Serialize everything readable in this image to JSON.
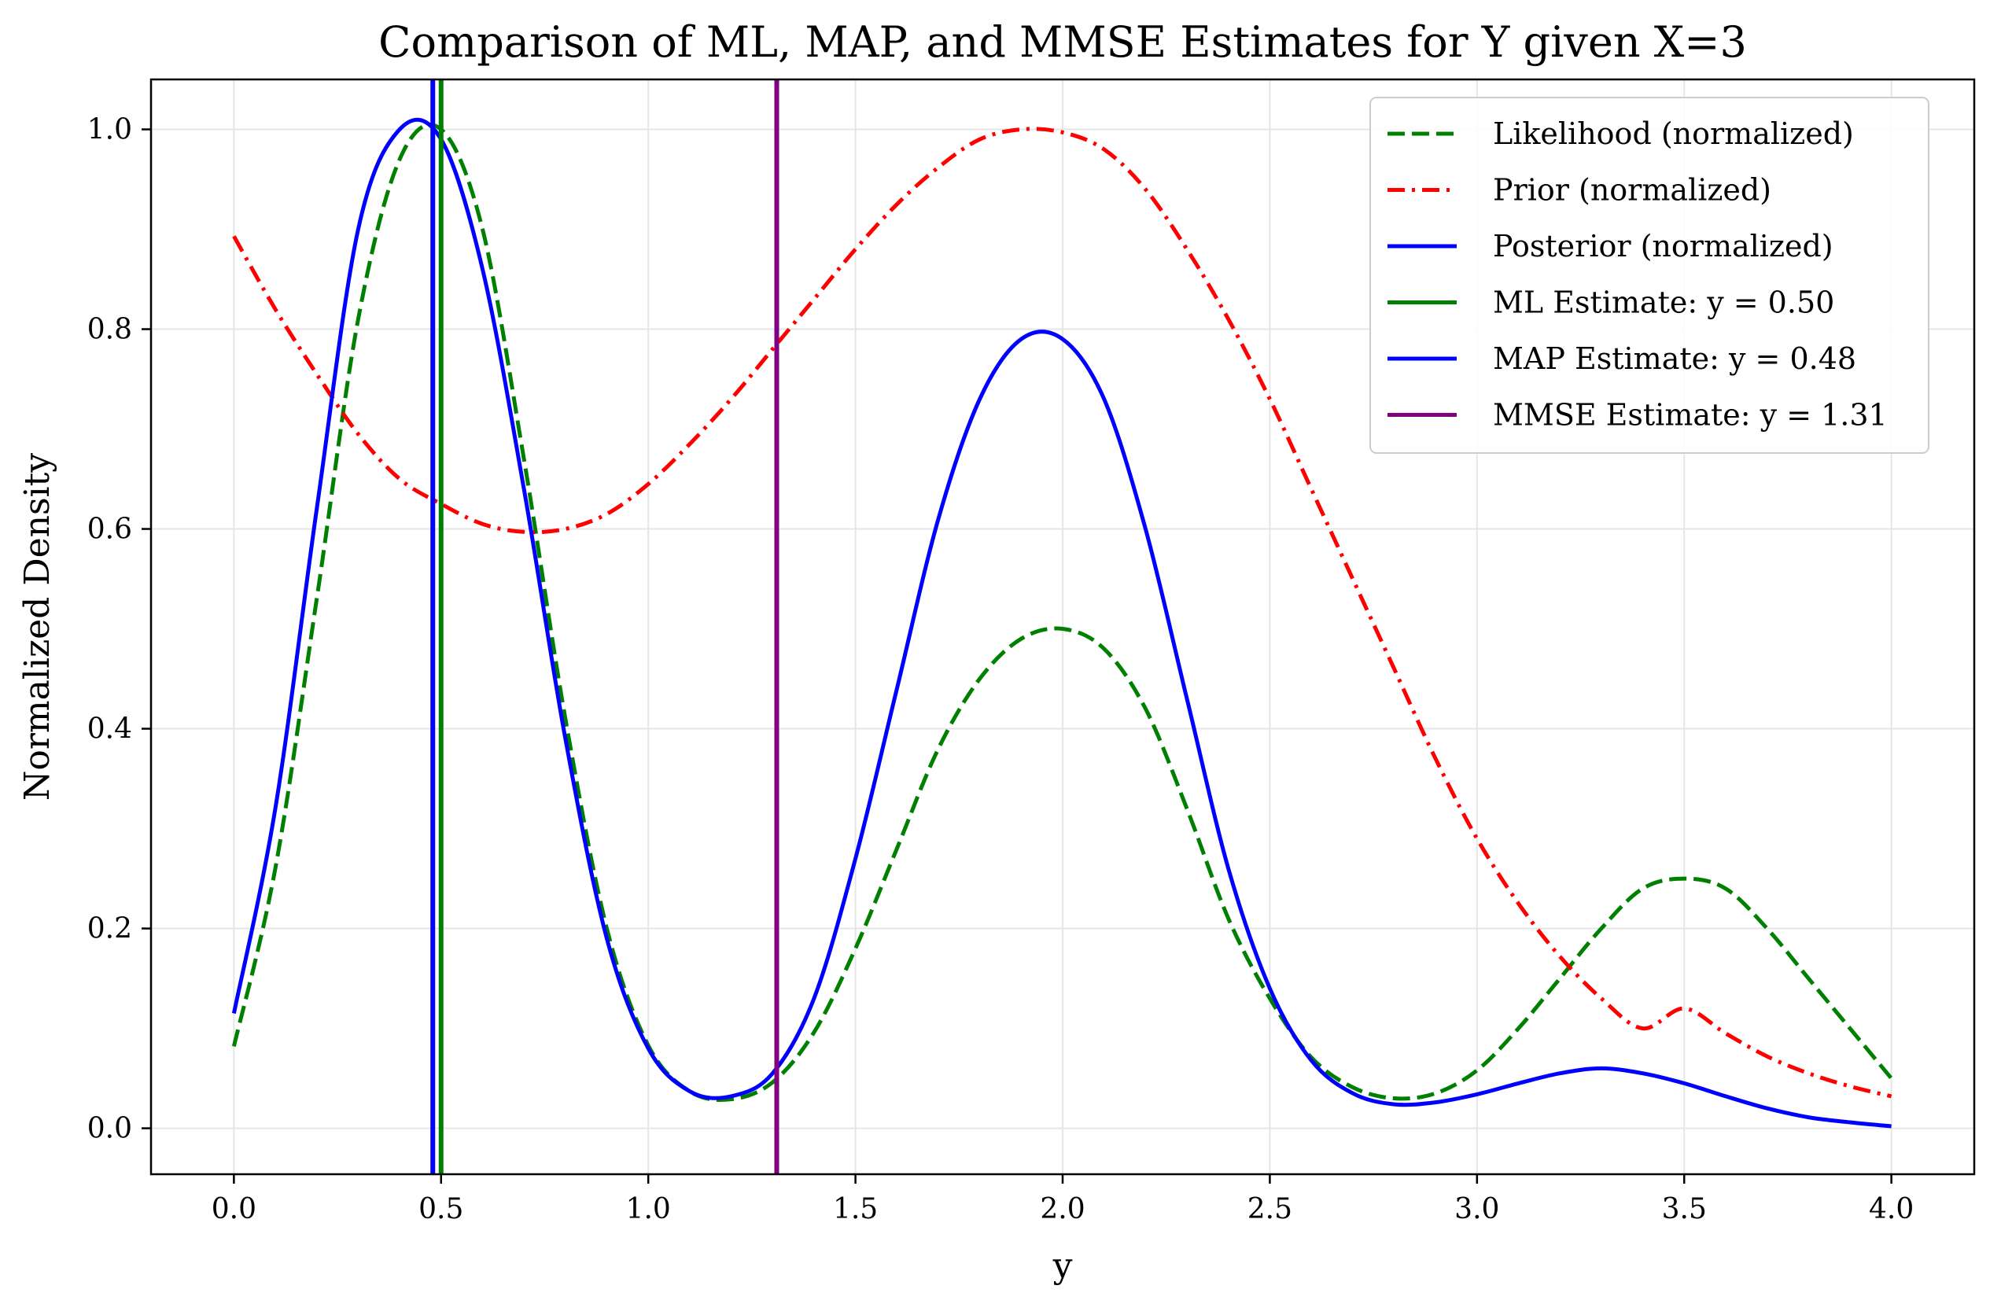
{
  "chart_data": {
    "type": "line",
    "title": "Comparison of ML, MAP, and MMSE Estimates for Y given X=3",
    "xlabel": "y",
    "ylabel": "Normalized Density",
    "xlim": [
      -0.2,
      4.2
    ],
    "ylim": [
      -0.046,
      1.05
    ],
    "xticks": [
      0.0,
      0.5,
      1.0,
      1.5,
      2.0,
      2.5,
      3.0,
      3.5,
      4.0
    ],
    "xtick_labels": [
      "0.0",
      "0.5",
      "1.0",
      "1.5",
      "2.0",
      "2.5",
      "3.0",
      "3.5",
      "4.0"
    ],
    "yticks": [
      0.0,
      0.2,
      0.4,
      0.6,
      0.8,
      1.0
    ],
    "ytick_labels": [
      "0.0",
      "0.2",
      "0.4",
      "0.6",
      "0.8",
      "1.0"
    ],
    "grid": true,
    "legend_position": "top-right",
    "series": [
      {
        "name": "Likelihood (normalized)",
        "color": "#008000",
        "style": "dashed",
        "x": [
          0.0,
          0.1,
          0.2,
          0.3,
          0.4,
          0.5,
          0.6,
          0.7,
          0.8,
          0.9,
          1.0,
          1.1,
          1.2,
          1.3,
          1.4,
          1.5,
          1.6,
          1.7,
          1.8,
          1.9,
          2.0,
          2.1,
          2.2,
          2.3,
          2.4,
          2.5,
          2.6,
          2.7,
          2.8,
          2.9,
          3.0,
          3.1,
          3.2,
          3.3,
          3.4,
          3.5,
          3.6,
          3.7,
          3.8,
          3.9,
          4.0
        ],
        "y": [
          0.082,
          0.26,
          0.53,
          0.81,
          0.97,
          1.0,
          0.9,
          0.67,
          0.41,
          0.2,
          0.083,
          0.037,
          0.029,
          0.046,
          0.096,
          0.18,
          0.28,
          0.38,
          0.45,
          0.49,
          0.5,
          0.48,
          0.42,
          0.32,
          0.21,
          0.13,
          0.071,
          0.041,
          0.03,
          0.035,
          0.058,
          0.1,
          0.15,
          0.2,
          0.24,
          0.25,
          0.24,
          0.2,
          0.15,
          0.1,
          0.05
        ]
      },
      {
        "name": "Prior (normalized)",
        "color": "#ff0000",
        "style": "dashdot",
        "x": [
          0.0,
          0.1,
          0.2,
          0.3,
          0.4,
          0.5,
          0.6,
          0.7,
          0.8,
          0.9,
          1.0,
          1.1,
          1.2,
          1.3,
          1.4,
          1.5,
          1.6,
          1.7,
          1.8,
          1.9,
          2.0,
          2.1,
          2.2,
          2.3,
          2.4,
          2.5,
          2.6,
          2.7,
          2.8,
          2.9,
          3.0,
          3.1,
          3.2,
          3.3,
          3.4,
          3.5,
          3.6,
          3.7,
          3.8,
          3.9,
          4.0
        ],
        "y": [
          0.893,
          0.82,
          0.755,
          0.695,
          0.65,
          0.625,
          0.605,
          0.597,
          0.6,
          0.615,
          0.645,
          0.685,
          0.73,
          0.78,
          0.83,
          0.88,
          0.925,
          0.962,
          0.99,
          1.0,
          0.997,
          0.98,
          0.94,
          0.88,
          0.81,
          0.73,
          0.64,
          0.55,
          0.46,
          0.37,
          0.29,
          0.225,
          0.172,
          0.13,
          0.1,
          0.12,
          0.095,
          0.072,
          0.055,
          0.042,
          0.032
        ]
      },
      {
        "name": "Posterior (normalized)",
        "color": "#0000ff",
        "style": "solid",
        "x": [
          0.0,
          0.1,
          0.2,
          0.3,
          0.4,
          0.5,
          0.6,
          0.7,
          0.8,
          0.9,
          1.0,
          1.1,
          1.2,
          1.3,
          1.4,
          1.5,
          1.6,
          1.7,
          1.8,
          1.9,
          2.0,
          2.1,
          2.2,
          2.3,
          2.4,
          2.5,
          2.6,
          2.7,
          2.8,
          2.9,
          3.0,
          3.1,
          3.2,
          3.3,
          3.4,
          3.5,
          3.6,
          3.7,
          3.8,
          3.9,
          4.0
        ],
        "y": [
          0.115,
          0.32,
          0.62,
          0.9,
          1.0,
          0.99,
          0.86,
          0.64,
          0.39,
          0.19,
          0.08,
          0.037,
          0.032,
          0.055,
          0.13,
          0.27,
          0.44,
          0.61,
          0.73,
          0.79,
          0.79,
          0.73,
          0.6,
          0.43,
          0.26,
          0.14,
          0.068,
          0.035,
          0.024,
          0.026,
          0.034,
          0.045,
          0.055,
          0.06,
          0.055,
          0.045,
          0.032,
          0.02,
          0.011,
          0.006,
          0.002
        ]
      }
    ],
    "vlines": [
      {
        "name": "ML Estimate: y = 0.50",
        "x": 0.5,
        "color": "#008000"
      },
      {
        "name": "MAP Estimate: y = 0.48",
        "x": 0.48,
        "color": "#0000ff"
      },
      {
        "name": "MMSE Estimate: y = 1.31",
        "x": 1.31,
        "color": "#800080"
      }
    ]
  }
}
